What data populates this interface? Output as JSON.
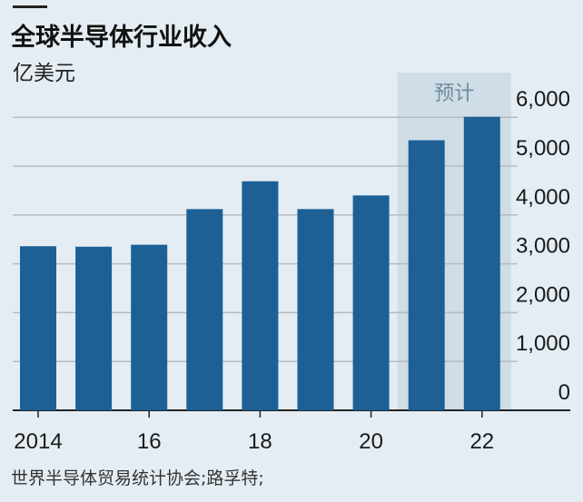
{
  "chart_data": {
    "type": "bar",
    "title": "全球半导体行业收入",
    "ylabel": "亿美元",
    "xlabel": "",
    "years": [
      2014,
      2015,
      2016,
      2017,
      2018,
      2019,
      2020,
      2021,
      2022
    ],
    "values": [
      3360,
      3350,
      3390,
      4120,
      4690,
      4120,
      4400,
      5530,
      6010
    ],
    "forecast_years": [
      2021,
      2022
    ],
    "forecast_label": "预计",
    "x_tick_labels": [
      "2014",
      "16",
      "18",
      "20",
      "22"
    ],
    "x_tick_years": [
      2014,
      2016,
      2018,
      2020,
      2022
    ],
    "y_ticks": [
      0,
      1000,
      2000,
      3000,
      4000,
      5000,
      6000
    ],
    "y_tick_labels": [
      "0",
      "1,000",
      "2,000",
      "3,000",
      "4,000",
      "5,000",
      "6,000"
    ],
    "ylim": [
      0,
      6000
    ],
    "grid": true,
    "source": "世界半导体贸易统计协会;路孚特;",
    "colors": {
      "bar": "#1c6096",
      "forecast_band": "#cfdde6",
      "grid": "#b4bcc2",
      "background": "#e4edf3"
    }
  }
}
